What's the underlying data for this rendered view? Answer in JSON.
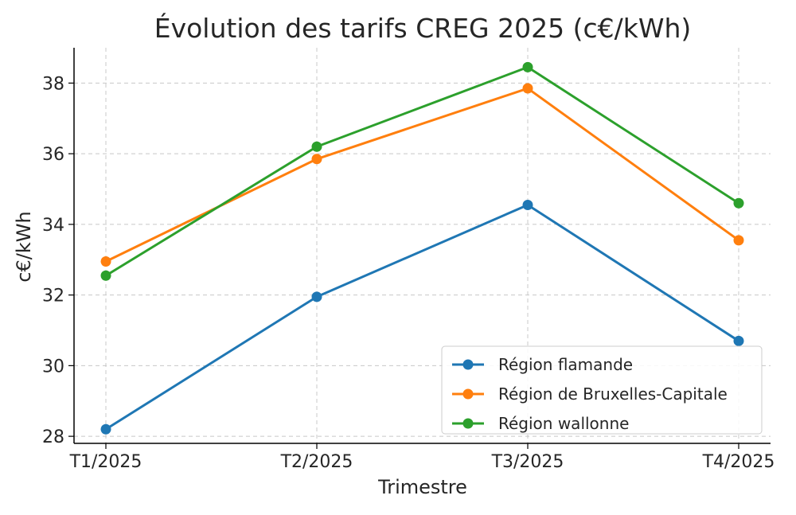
{
  "chart_data": {
    "type": "line",
    "title": "Évolution des tarifs CREG 2025 (c€/kWh)",
    "xlabel": "Trimestre",
    "ylabel": "c€/kWh",
    "categories": [
      "T1/2025",
      "T2/2025",
      "T3/2025",
      "T4/2025"
    ],
    "ylim": [
      27.8,
      39.0
    ],
    "yticks": [
      28,
      30,
      32,
      34,
      36,
      38
    ],
    "grid": true,
    "legend_position": "bottom-right",
    "series": [
      {
        "name": "Région flamande",
        "color": "#1f77b4",
        "values": [
          28.2,
          31.95,
          34.55,
          30.7
        ]
      },
      {
        "name": "Région de Bruxelles-Capitale",
        "color": "#ff7f0e",
        "values": [
          32.95,
          35.85,
          37.85,
          33.55
        ]
      },
      {
        "name": "Région wallonne",
        "color": "#2ca02c",
        "values": [
          32.55,
          36.2,
          38.45,
          34.6
        ]
      }
    ]
  }
}
